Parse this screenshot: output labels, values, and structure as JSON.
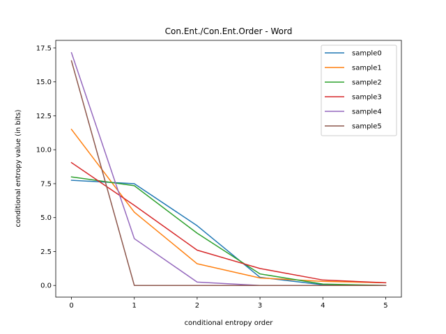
{
  "chart_data": {
    "type": "line",
    "title": "Con.Ent./Con.Ent.Order - Word",
    "xlabel": "conditional entropy order",
    "ylabel": "conditional entropy value (in bits)",
    "x": [
      0,
      1,
      2,
      3,
      4,
      5
    ],
    "xticks": [
      "0",
      "1",
      "2",
      "3",
      "4",
      "5"
    ],
    "yticks": [
      "0.0",
      "2.5",
      "5.0",
      "7.5",
      "10.0",
      "12.5",
      "15.0",
      "17.5"
    ],
    "xlim": [
      -0.25,
      5.25
    ],
    "ylim": [
      -0.86,
      18.06
    ],
    "grid": false,
    "legend_position": "top-right",
    "series": [
      {
        "name": "sample0",
        "color": "#1f77b4",
        "values": [
          7.75,
          7.5,
          4.4,
          0.6,
          0.05,
          0.0
        ]
      },
      {
        "name": "sample1",
        "color": "#ff7f0e",
        "values": [
          11.5,
          5.4,
          1.6,
          0.55,
          0.3,
          0.2
        ]
      },
      {
        "name": "sample2",
        "color": "#2ca02c",
        "values": [
          8.0,
          7.35,
          3.85,
          0.85,
          0.1,
          0.0
        ]
      },
      {
        "name": "sample3",
        "color": "#d62728",
        "values": [
          9.05,
          5.9,
          2.6,
          1.25,
          0.4,
          0.2
        ]
      },
      {
        "name": "sample4",
        "color": "#9467bd",
        "values": [
          17.15,
          3.45,
          0.25,
          0.0,
          0.0,
          0.0
        ]
      },
      {
        "name": "sample5",
        "color": "#8c564b",
        "values": [
          16.55,
          0.0,
          0.0,
          0.0,
          0.0,
          0.0
        ]
      }
    ]
  }
}
